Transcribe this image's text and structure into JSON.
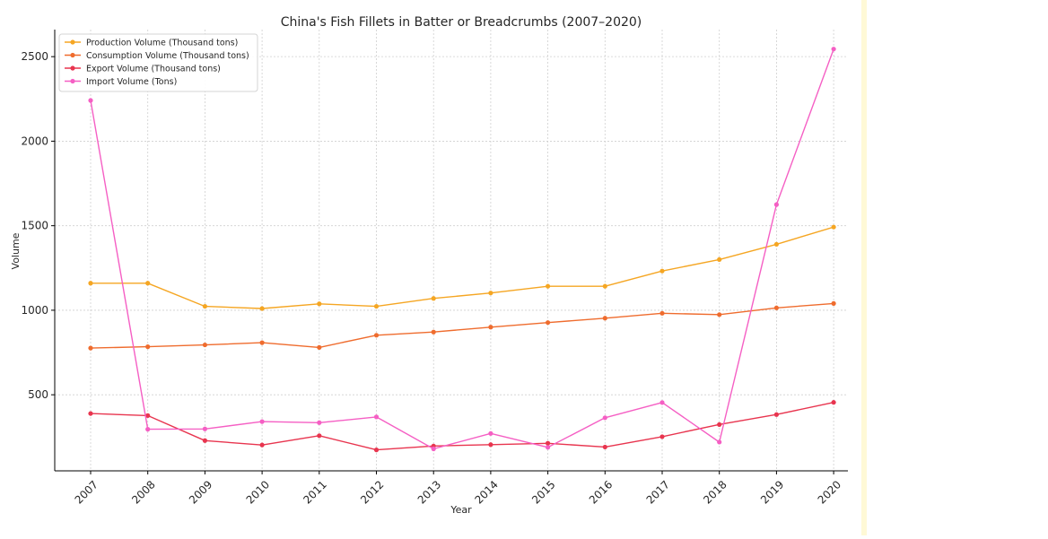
{
  "chart_data": {
    "type": "line",
    "title": "China's Fish Fillets in Batter or Breadcrumbs (2007–2020)",
    "xlabel": "Year",
    "ylabel": "Volume",
    "x": [
      "2007",
      "2008",
      "2009",
      "2010",
      "2011",
      "2012",
      "2013",
      "2014",
      "2015",
      "2016",
      "2017",
      "2018",
      "2019",
      "2020"
    ],
    "yticks": [
      500,
      1000,
      1500,
      2000,
      2500
    ],
    "ylim": [
      50,
      2660
    ],
    "grid": true,
    "legend_position": "top-left",
    "series": [
      {
        "name": "Production Volume (Thousand tons)",
        "color": "#f5a623",
        "values": [
          1160,
          1160,
          1023,
          1010,
          1038,
          1023,
          1070,
          1102,
          1142,
          1142,
          1232,
          1300,
          1390,
          1492
        ]
      },
      {
        "name": "Consumption Volume (Thousand tons)",
        "color": "#ef6c2e",
        "values": [
          776,
          784,
          795,
          808,
          780,
          852,
          871,
          900,
          927,
          953,
          982,
          974,
          1014,
          1040
        ]
      },
      {
        "name": "Export Volume (Thousand tons)",
        "color": "#e8354f",
        "values": [
          389,
          377,
          229,
          203,
          258,
          174,
          197,
          205,
          213,
          191,
          252,
          324,
          383,
          455
        ]
      },
      {
        "name": "Import Volume (Tons)",
        "color": "#f55fc4",
        "values": [
          2241,
          296,
          298,
          341,
          335,
          369,
          180,
          271,
          189,
          364,
          454,
          220,
          1625,
          2545
        ]
      }
    ]
  }
}
